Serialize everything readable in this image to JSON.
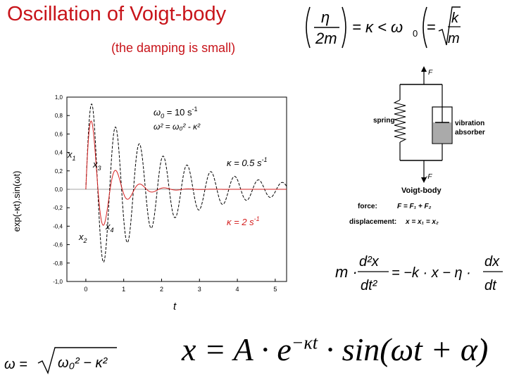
{
  "slide": {
    "title": "Oscillation of Voigt-body",
    "subtitle": "(the damping is small)"
  },
  "chart_data": {
    "type": "line",
    "xlabel": "t",
    "ylabel": "exp(-κt).sin(ωt)",
    "xlim": [
      -0.5,
      5.3
    ],
    "ylim": [
      -1.0,
      1.0
    ],
    "x_ticks": [
      "0",
      "1",
      "2",
      "3",
      "4",
      "5"
    ],
    "y_ticks": [
      "1,0",
      "0,8",
      "0,6",
      "0,4",
      "0,2",
      "0,0",
      "-0,2",
      "-0,4",
      "-0,6",
      "-0,8",
      "-1,0"
    ],
    "omega0": 10,
    "series": [
      {
        "name": "κ = 0.5 s⁻¹",
        "kappa": 0.5,
        "color": "#000000",
        "style": "dashed"
      },
      {
        "name": "κ = 2 s⁻¹",
        "kappa": 2,
        "color": "#d42020",
        "style": "solid"
      }
    ],
    "annotations": {
      "omega0_main": "ω",
      "omega0_sub": "0",
      "omega0_val": " = 10 s",
      "omega0_exp": "-1",
      "omega_rel": "ω² = ω₀² - κ²",
      "kappa_black": "κ  = 0.5 s",
      "kappa_black_exp": "-1",
      "kappa_red": "κ = 2 s",
      "kappa_red_exp": "-1",
      "x1": "x",
      "x1_sub": "1",
      "x2": "x",
      "x2_sub": "2",
      "x3": "x",
      "x3_sub": "3",
      "x4": "x",
      "x4_sub": "4"
    }
  },
  "diagram": {
    "force_top": "F",
    "force_bottom": "-F",
    "spring_label": "spring",
    "absorber_label_1": "vibration",
    "absorber_label_2": "absorber",
    "body_label": "Voigt-body",
    "force_row_label": "force:",
    "force_row_eq": "F = F₁ + F₂",
    "disp_row_label": "displacement:",
    "disp_row_eq": "x = x₁ = x₂"
  },
  "equations": {
    "condition": {
      "eta": "η",
      "two_m": "2m",
      "lt_kappa": "= κ < ω",
      "sub0": "0",
      "eq": "=",
      "k": "k",
      "m": "m"
    },
    "motion": {
      "m": "m ·",
      "d2x": "d²x",
      "dt2": "dt²",
      "mid": "= −k · x − η ·",
      "dx": "dx",
      "dt": "dt"
    },
    "omega": {
      "lhs": "ω =",
      "rad": "ω₀² − κ²"
    },
    "solution": "x = A · e⁻ᴷᵗ · sin(ωt + α)",
    "solution_parts": {
      "lhs": "x = A · e",
      "exp": "−κt",
      "rhs": " · sin(ωt + α)"
    }
  }
}
